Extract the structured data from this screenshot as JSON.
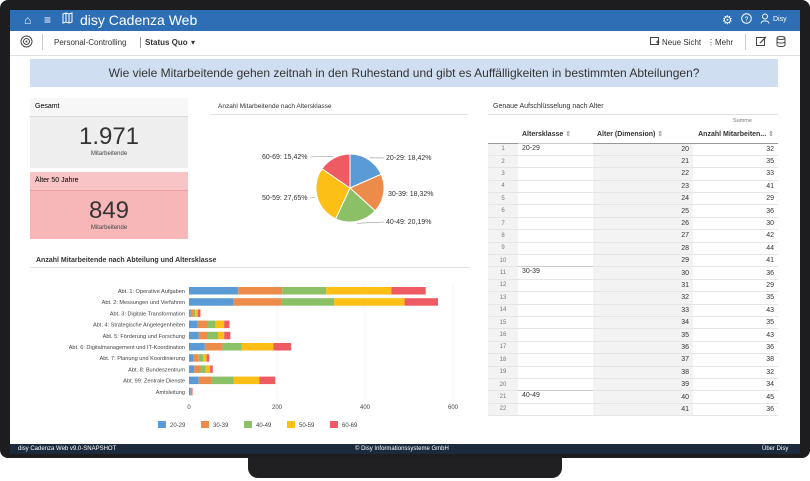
{
  "app": {
    "title": "disy Cadenza Web"
  },
  "toolbar": {
    "breadcrumb": "Personal-Controlling",
    "view": "Status Quo",
    "new_view": "Neue Sicht",
    "more": "Mehr"
  },
  "banner": {
    "question": "Wie viele Mitarbeitende gehen zeitnah in den Ruhestand und gibt es Auffälligkeiten in bestimmten Abteilungen?"
  },
  "cards": {
    "total": {
      "header": "Gesamt",
      "value": "1.971",
      "label": "Mitarbeitende"
    },
    "over50": {
      "header": "Älter 50 Jahre",
      "value": "849",
      "label": "Mitarbeitende"
    }
  },
  "colors": {
    "20-29": "#5b9bd5",
    "30-39": "#ed8b4a",
    "40-49": "#8bc067",
    "50-59": "#fbbf16",
    "60-69": "#ee5b62"
  },
  "chart_data": [
    {
      "type": "pie",
      "title": "Anzahl Mitarbeitende nach Altersklasse",
      "labels": [
        "20-29",
        "30-39",
        "40-49",
        "50-59",
        "60-69"
      ],
      "values": [
        18.42,
        18.32,
        20.19,
        27.65,
        15.42
      ],
      "display": [
        "20-29: 18,42%",
        "30-39: 18,32%",
        "40-49: 20,19%",
        "50-59: 27,65%",
        "60-69: 15,42%"
      ]
    },
    {
      "type": "bar",
      "orientation": "horizontal",
      "stacked": true,
      "title": "Anzahl Mitarbeitende nach Abteilung und Altersklasse",
      "categories": [
        "Abt. 1: Operative Aufgaben",
        "Abt. 2: Messungen und Verfahren",
        "Abt. 3: Digitale Transformation",
        "Abt. 4: Strategische Angelegenheiten",
        "Abt. 5: Förderung und Forschung",
        "Abt. 6: Digitalmanagement und IT-Koordination",
        "Abt. 7: Planung und Koordinierung",
        "Abt. 8: Bundeszentrum",
        "Abt. 99: Zentrale Dienste",
        "Amtsleitung"
      ],
      "series": [
        {
          "name": "20-29",
          "values": [
            112,
            100,
            4,
            20,
            22,
            36,
            10,
            12,
            22,
            4
          ]
        },
        {
          "name": "30-39",
          "values": [
            100,
            110,
            6,
            22,
            20,
            40,
            12,
            14,
            30,
            2
          ]
        },
        {
          "name": "40-49",
          "values": [
            100,
            120,
            4,
            18,
            24,
            44,
            10,
            12,
            50,
            0
          ]
        },
        {
          "name": "50-59",
          "values": [
            148,
            160,
            6,
            20,
            14,
            72,
            8,
            10,
            58,
            0
          ]
        },
        {
          "name": "60-69",
          "values": [
            78,
            76,
            6,
            12,
            14,
            40,
            6,
            6,
            36,
            2
          ]
        }
      ],
      "xticks": [
        0,
        200,
        400,
        600
      ],
      "xlim": [
        0,
        600
      ]
    }
  ],
  "table": {
    "title": "Genaue Aufschlüsselung nach Alter",
    "sum_label": "Summe",
    "headers": [
      "Altersklasse",
      "Alter (Dimension)",
      "Anzahl Mitarbeiten..."
    ],
    "rows": [
      [
        "1",
        "20-29",
        "20",
        "32"
      ],
      [
        "2",
        "",
        "21",
        "35"
      ],
      [
        "3",
        "",
        "22",
        "33"
      ],
      [
        "4",
        "",
        "23",
        "41"
      ],
      [
        "5",
        "",
        "24",
        "29"
      ],
      [
        "6",
        "",
        "25",
        "36"
      ],
      [
        "7",
        "",
        "26",
        "30"
      ],
      [
        "8",
        "",
        "27",
        "42"
      ],
      [
        "9",
        "",
        "28",
        "44"
      ],
      [
        "10",
        "",
        "29",
        "41"
      ],
      [
        "11",
        "30-39",
        "30",
        "36"
      ],
      [
        "12",
        "",
        "31",
        "29"
      ],
      [
        "13",
        "",
        "32",
        "35"
      ],
      [
        "14",
        "",
        "33",
        "43"
      ],
      [
        "15",
        "",
        "34",
        "35"
      ],
      [
        "16",
        "",
        "35",
        "43"
      ],
      [
        "17",
        "",
        "36",
        "36"
      ],
      [
        "18",
        "",
        "37",
        "38"
      ],
      [
        "19",
        "",
        "38",
        "32"
      ],
      [
        "20",
        "",
        "39",
        "34"
      ],
      [
        "21",
        "40-49",
        "40",
        "45"
      ],
      [
        "22",
        "",
        "41",
        "36"
      ]
    ]
  },
  "footer": {
    "version": "disy Cadenza Web v9.0-SNAPSHOT",
    "copyright": "© Disy Informationssysteme GmbH",
    "about": "Über Disy"
  },
  "user": {
    "name": "Disy"
  }
}
